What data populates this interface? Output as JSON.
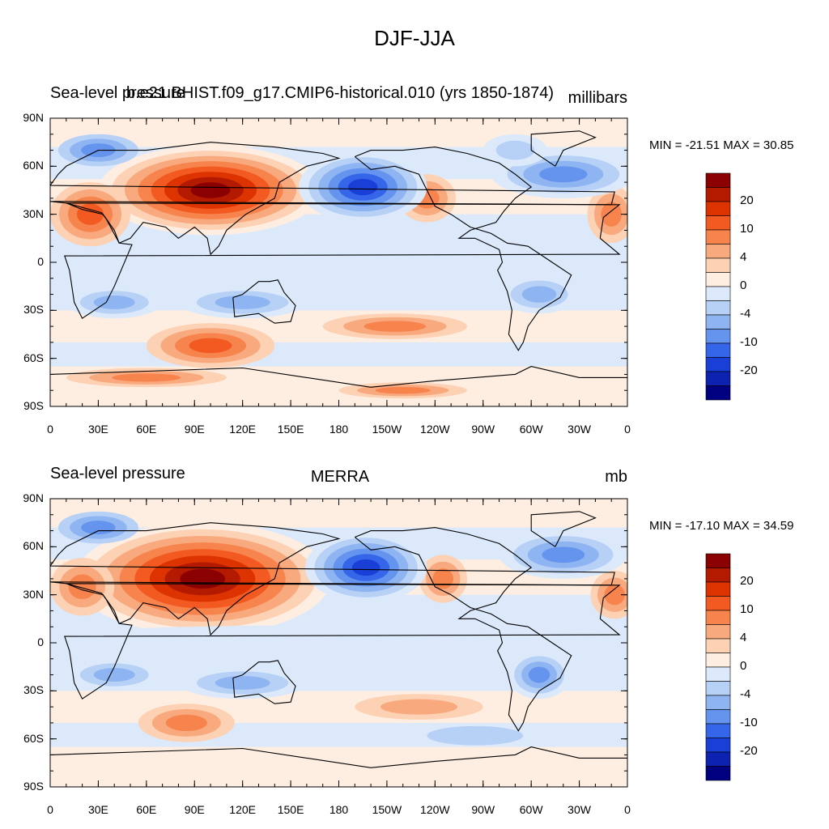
{
  "title": "DJF-JJA",
  "panels": [
    {
      "left_title": "Sea-level pressure",
      "center_title": "b.e21.BHIST.f09_g17.CMIP6-historical.010 (yrs 1850-1874)",
      "units": "millibars",
      "minmax": "MIN = -21.51 MAX =  30.85"
    },
    {
      "left_title": "Sea-level pressure",
      "center_title": "MERRA",
      "units": "mb",
      "minmax": "MIN = -17.10 MAX =  34.59"
    }
  ],
  "chart_data": [
    {
      "type": "heatmap",
      "projection": "cylindrical-equidistant",
      "lon_range": [
        0,
        360
      ],
      "lat_range": [
        -90,
        90
      ],
      "variable": "Sea-level pressure",
      "units": "millibars",
      "min": -21.51,
      "max": 30.85,
      "y_tick_labels": [
        "90N",
        "60N",
        "30N",
        "0",
        "30S",
        "60S",
        "90S"
      ],
      "x_tick_labels": [
        "0",
        "30E",
        "60E",
        "90E",
        "120E",
        "150E",
        "180",
        "150W",
        "120W",
        "90W",
        "60W",
        "30W",
        "0"
      ],
      "colorbar_labels": [
        "20",
        "10",
        "4",
        "0",
        "-4",
        "-10",
        "-20"
      ]
    },
    {
      "type": "heatmap",
      "projection": "cylindrical-equidistant",
      "lon_range": [
        0,
        360
      ],
      "lat_range": [
        -90,
        90
      ],
      "variable": "Sea-level pressure",
      "units": "mb",
      "min": -17.1,
      "max": 34.59,
      "y_tick_labels": [
        "90N",
        "60N",
        "30N",
        "0",
        "30S",
        "60S",
        "90S"
      ],
      "x_tick_labels": [
        "0",
        "30E",
        "60E",
        "90E",
        "120E",
        "150E",
        "180",
        "150W",
        "120W",
        "90W",
        "60W",
        "30W",
        "0"
      ],
      "colorbar_labels": [
        "20",
        "10",
        "4",
        "0",
        "-4",
        "-10",
        "-20"
      ]
    }
  ],
  "colors": {
    "levels": [
      "#8b0000",
      "#b31a00",
      "#dd3300",
      "#f25a22",
      "#f7834d",
      "#f9a97e",
      "#fcd1b4",
      "#feeee2",
      "#dbe9fa",
      "#b6d0f6",
      "#8eb5f1",
      "#6494ee",
      "#3565e8",
      "#1a3fd6",
      "#0d22b0",
      "#000080"
    ],
    "coast": "#000000"
  }
}
